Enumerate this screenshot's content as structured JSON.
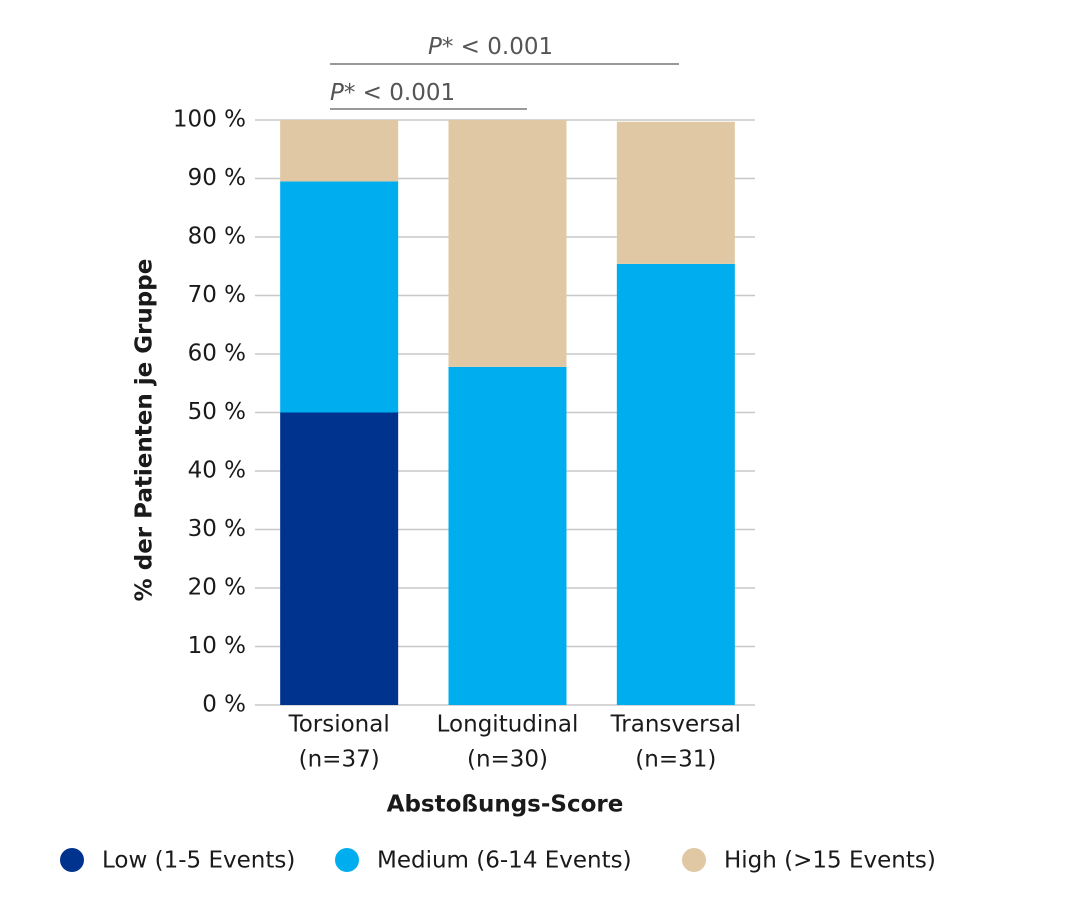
{
  "chart_data": {
    "type": "stacked-bar",
    "annotations": [
      {
        "italic": "P*",
        "text": " < 0.001"
      },
      {
        "italic": "P*",
        "text": " < 0.001"
      }
    ],
    "y_label": "% der Patienten je Gruppe",
    "x_label": "Abstoßungs-Score",
    "categories": [
      "Torsional",
      "Longitudinal",
      "Transversal"
    ],
    "category_sublabels": [
      "(n=37)",
      "(n=30)",
      "(n=31)"
    ],
    "series": [
      {
        "name": "Low (1-5 Events)",
        "color": "#00338d",
        "values": [
          50,
          0,
          0
        ]
      },
      {
        "name": "Medium (6-14 Events)",
        "color": "#00aeef",
        "values": [
          39.5,
          57.8,
          75.4
        ]
      },
      {
        "name": "High (>15 Events)",
        "color": "#dfc8a3",
        "values": [
          10.5,
          42.2,
          24.3
        ]
      }
    ],
    "ylim": [
      0,
      100
    ],
    "yticks": [
      {
        "value": 0,
        "label": "0 %"
      },
      {
        "value": 10,
        "label": "10 %"
      },
      {
        "value": 20,
        "label": "20 %"
      },
      {
        "value": 30,
        "label": "30 %"
      },
      {
        "value": 40,
        "label": "40 %"
      },
      {
        "value": 50,
        "label": "50 %"
      },
      {
        "value": 60,
        "label": "60 %"
      },
      {
        "value": 70,
        "label": "70 %"
      },
      {
        "value": 80,
        "label": "80 %"
      },
      {
        "value": 90,
        "label": "90 %"
      },
      {
        "value": 100,
        "label": "100 %"
      }
    ],
    "grid": true
  }
}
